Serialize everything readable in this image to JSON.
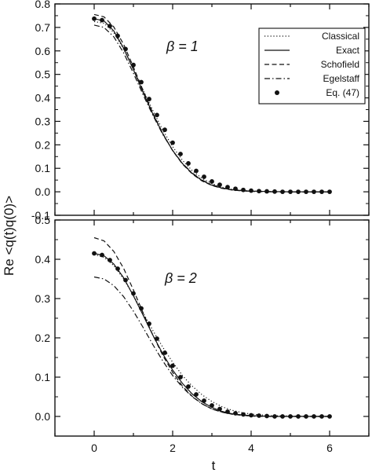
{
  "figure": {
    "ylabel": "Re <q(t)q(0)>",
    "xlabel": "t"
  },
  "chart_data": [
    {
      "type": "line",
      "annotation": "β = 1",
      "xlim": [
        -1,
        7
      ],
      "ylim": [
        -0.1,
        0.8
      ],
      "xticks": [
        "0",
        "2",
        "4",
        "6"
      ],
      "yticks": [
        "-0.1",
        "0.0",
        "0.1",
        "0.2",
        "0.3",
        "0.4",
        "0.5",
        "0.6",
        "0.7",
        "0.8"
      ],
      "legend": {
        "placement": "top-right"
      },
      "series": [
        {
          "name": "Classical",
          "style": "dotted",
          "x": [
            0,
            0.25,
            0.5,
            0.75,
            1.0,
            1.25,
            1.5,
            1.75,
            2.0,
            2.25,
            2.5,
            2.75,
            3.0,
            3.25,
            3.5,
            3.75,
            4.0,
            4.5,
            5.0,
            5.5,
            6.0
          ],
          "y": [
            0.725,
            0.718,
            0.678,
            0.608,
            0.525,
            0.432,
            0.345,
            0.262,
            0.192,
            0.134,
            0.09,
            0.057,
            0.035,
            0.02,
            0.011,
            0.006,
            0.003,
            0.001,
            0.0,
            0.0,
            0.0
          ]
        },
        {
          "name": "Exact",
          "style": "solid",
          "x": [
            0,
            0.25,
            0.5,
            0.75,
            1.0,
            1.25,
            1.5,
            1.75,
            2.0,
            2.25,
            2.5,
            2.75,
            3.0,
            3.25,
            3.5,
            3.75,
            4.0,
            4.5,
            5.0,
            5.5,
            6.0
          ],
          "y": [
            0.737,
            0.728,
            0.685,
            0.612,
            0.52,
            0.422,
            0.33,
            0.247,
            0.176,
            0.12,
            0.078,
            0.048,
            0.028,
            0.016,
            0.009,
            0.005,
            0.003,
            0.001,
            0.0,
            0.0,
            0.0
          ]
        },
        {
          "name": "Schofield",
          "style": "dashed",
          "x": [
            0,
            0.25,
            0.5,
            0.75,
            1.0,
            1.25,
            1.5,
            1.75,
            2.0,
            2.25,
            2.5,
            2.75,
            3.0,
            3.25,
            3.5,
            3.75,
            4.0,
            4.5,
            5.0,
            5.5,
            6.0
          ],
          "y": [
            0.755,
            0.745,
            0.702,
            0.628,
            0.532,
            0.43,
            0.334,
            0.248,
            0.175,
            0.118,
            0.076,
            0.046,
            0.027,
            0.015,
            0.008,
            0.004,
            0.002,
            0.0,
            0.0,
            0.0,
            0.0
          ]
        },
        {
          "name": "Egelstaff",
          "style": "dash-dot",
          "x": [
            0,
            0.25,
            0.5,
            0.75,
            1.0,
            1.25,
            1.5,
            1.75,
            2.0,
            2.25,
            2.5,
            2.75,
            3.0,
            3.25,
            3.5,
            3.75,
            4.0,
            4.5,
            5.0,
            5.5,
            6.0
          ],
          "y": [
            0.71,
            0.7,
            0.66,
            0.592,
            0.505,
            0.412,
            0.324,
            0.244,
            0.176,
            0.121,
            0.08,
            0.05,
            0.03,
            0.017,
            0.009,
            0.005,
            0.002,
            0.0,
            0.0,
            0.0,
            0.0
          ]
        },
        {
          "name": "Eq. (47)",
          "style": "markers",
          "x": [
            0,
            0.2,
            0.4,
            0.6,
            0.8,
            1.0,
            1.2,
            1.4,
            1.6,
            1.8,
            2.0,
            2.2,
            2.4,
            2.6,
            2.8,
            3.0,
            3.2,
            3.4,
            3.6,
            3.8,
            4.0,
            4.2,
            4.4,
            4.6,
            4.8,
            5.0,
            5.2,
            5.4,
            5.6,
            5.8,
            6.0
          ],
          "y": [
            0.737,
            0.731,
            0.706,
            0.664,
            0.608,
            0.54,
            0.467,
            0.395,
            0.327,
            0.264,
            0.209,
            0.161,
            0.121,
            0.089,
            0.064,
            0.044,
            0.03,
            0.02,
            0.013,
            0.008,
            0.005,
            0.003,
            0.002,
            0.001,
            0.0,
            0.0,
            0.0,
            0.0,
            0.0,
            0.0,
            0.0
          ]
        }
      ]
    },
    {
      "type": "line",
      "annotation": "β = 2",
      "xlim": [
        -1,
        7
      ],
      "ylim": [
        -0.05,
        0.5
      ],
      "xticks": [
        "0",
        "2",
        "4",
        "6"
      ],
      "yticks": [
        "0.0",
        "0.1",
        "0.2",
        "0.3",
        "0.4",
        "0.5"
      ],
      "series": [
        {
          "name": "Classical",
          "style": "dotted",
          "x": [
            0,
            0.25,
            0.5,
            0.75,
            1.0,
            1.25,
            1.5,
            1.75,
            2.0,
            2.25,
            2.5,
            2.75,
            3.0,
            3.25,
            3.5,
            3.75,
            4.0,
            4.5,
            5.0,
            5.5,
            6.0
          ],
          "y": [
            0.412,
            0.405,
            0.384,
            0.35,
            0.308,
            0.263,
            0.218,
            0.176,
            0.138,
            0.104,
            0.077,
            0.055,
            0.038,
            0.025,
            0.016,
            0.01,
            0.006,
            0.002,
            0.001,
            0.0,
            0.0
          ]
        },
        {
          "name": "Exact",
          "style": "solid",
          "x": [
            0,
            0.25,
            0.5,
            0.75,
            1.0,
            1.25,
            1.5,
            1.75,
            2.0,
            2.25,
            2.5,
            2.75,
            3.0,
            3.25,
            3.5,
            3.75,
            4.0,
            4.5,
            5.0,
            5.5,
            6.0
          ],
          "y": [
            0.415,
            0.409,
            0.388,
            0.353,
            0.307,
            0.257,
            0.206,
            0.159,
            0.118,
            0.084,
            0.057,
            0.037,
            0.023,
            0.013,
            0.007,
            0.004,
            0.002,
            0.0,
            0.0,
            0.0,
            0.0
          ]
        },
        {
          "name": "Schofield",
          "style": "dashed",
          "x": [
            0,
            0.25,
            0.5,
            0.75,
            1.0,
            1.25,
            1.5,
            1.75,
            2.0,
            2.25,
            2.5,
            2.75,
            3.0,
            3.25,
            3.5,
            3.75,
            4.0,
            4.5,
            5.0,
            5.5,
            6.0
          ],
          "y": [
            0.455,
            0.447,
            0.42,
            0.377,
            0.322,
            0.263,
            0.206,
            0.155,
            0.112,
            0.077,
            0.051,
            0.032,
            0.019,
            0.011,
            0.006,
            0.003,
            0.001,
            0.0,
            0.0,
            0.0,
            0.0
          ]
        },
        {
          "name": "Egelstaff",
          "style": "dash-dot",
          "x": [
            0,
            0.25,
            0.5,
            0.75,
            1.0,
            1.25,
            1.5,
            1.75,
            2.0,
            2.25,
            2.5,
            2.75,
            3.0,
            3.25,
            3.5,
            3.75,
            4.0,
            4.5,
            5.0,
            5.5,
            6.0
          ],
          "y": [
            0.355,
            0.35,
            0.333,
            0.305,
            0.268,
            0.226,
            0.182,
            0.141,
            0.104,
            0.074,
            0.05,
            0.032,
            0.019,
            0.011,
            0.006,
            0.003,
            0.001,
            0.0,
            0.0,
            0.0,
            0.0
          ]
        },
        {
          "name": "Eq. (47)",
          "style": "markers",
          "x": [
            0,
            0.2,
            0.4,
            0.6,
            0.8,
            1.0,
            1.2,
            1.4,
            1.6,
            1.8,
            2.0,
            2.2,
            2.4,
            2.6,
            2.8,
            3.0,
            3.2,
            3.4,
            3.6,
            3.8,
            4.0,
            4.2,
            4.4,
            4.6,
            4.8,
            5.0,
            5.2,
            5.4,
            5.6,
            5.8,
            6.0
          ],
          "y": [
            0.415,
            0.411,
            0.398,
            0.376,
            0.347,
            0.313,
            0.275,
            0.236,
            0.198,
            0.162,
            0.129,
            0.1,
            0.076,
            0.056,
            0.04,
            0.028,
            0.019,
            0.012,
            0.008,
            0.005,
            0.003,
            0.002,
            0.001,
            0.0,
            0.0,
            0.0,
            0.0,
            0.0,
            0.0,
            0.0,
            0.0
          ]
        }
      ]
    }
  ]
}
